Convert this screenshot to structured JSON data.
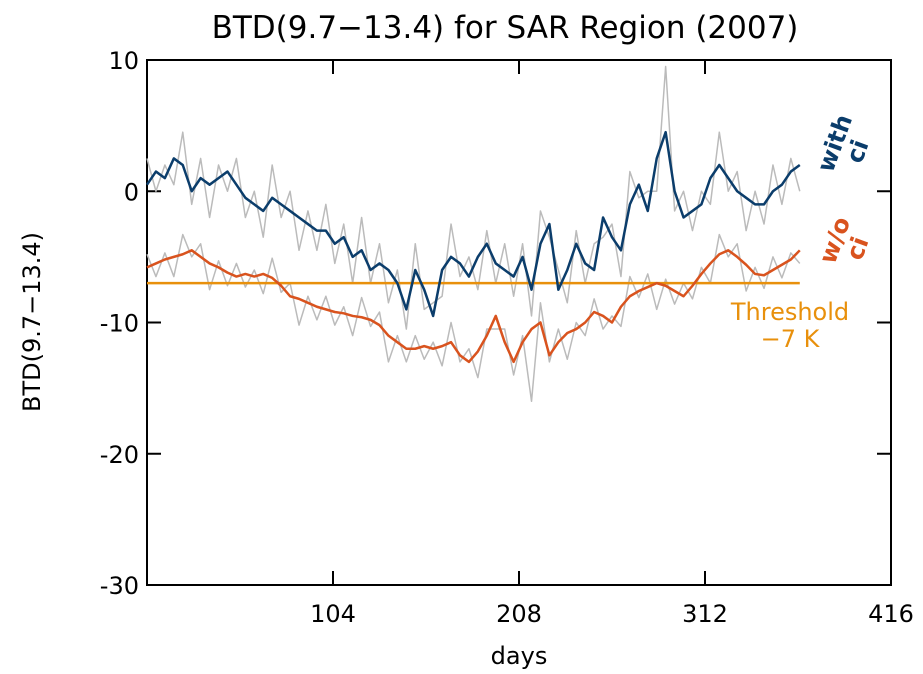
{
  "chart_data": {
    "type": "line",
    "title": "BTD(9.7−13.4) for SAR Region (2007)",
    "x_label": "days",
    "y_label": "BTD(9.7−13.4)",
    "xlim": [
      0,
      416
    ],
    "xticks": [
      104,
      208,
      312,
      416
    ],
    "ylim": [
      -30,
      10
    ],
    "yticks": [
      -30,
      -20,
      -10,
      0,
      10
    ],
    "x": [
      0,
      5,
      10,
      15,
      20,
      25,
      30,
      35,
      40,
      45,
      50,
      55,
      60,
      65,
      70,
      75,
      80,
      85,
      90,
      95,
      100,
      105,
      110,
      115,
      120,
      125,
      130,
      135,
      140,
      145,
      150,
      155,
      160,
      165,
      170,
      175,
      180,
      185,
      190,
      195,
      200,
      205,
      210,
      215,
      220,
      225,
      230,
      235,
      240,
      245,
      250,
      255,
      260,
      265,
      270,
      275,
      280,
      285,
      290,
      295,
      300,
      305,
      310,
      315,
      320,
      325,
      330,
      335,
      340,
      345,
      350,
      355,
      360,
      365
    ],
    "series": [
      {
        "color": "#bbbbbb",
        "values": [
          2.5,
          0,
          2,
          0.5,
          4.5,
          -1,
          2.5,
          -2,
          2,
          0,
          2.5,
          -2,
          0,
          -3.5,
          2,
          -2,
          0,
          -4.5,
          -1.5,
          -4.5,
          -1,
          -5.5,
          -2.5,
          -7,
          -2,
          -7,
          -4,
          -8.5,
          -6,
          -10.5,
          -4,
          -9,
          -8.5,
          -8,
          -2.5,
          -6.5,
          -5,
          -7.5,
          -3,
          -7,
          -4,
          -8,
          -4,
          -9.5,
          -1.5,
          -3.5,
          -6,
          -8.5,
          -3,
          -7,
          -4,
          -3.5,
          -2.5,
          -6.5,
          1.5,
          -0.5,
          0,
          0,
          9.5,
          -1.5,
          0,
          -3,
          0,
          -1,
          4.5,
          0,
          1.5,
          -3,
          0,
          -2.5,
          2,
          -1,
          2.5,
          0
        ]
      },
      {
        "color": "#bbbbbb",
        "values": [
          -4.8,
          -6.5,
          -4.7,
          -6.5,
          -3.3,
          -5,
          -4,
          -7.5,
          -5.3,
          -7.2,
          -5.5,
          -7.3,
          -6,
          -7.8,
          -5.1,
          -7.7,
          -7,
          -10.2,
          -8,
          -9.8,
          -8,
          -10.2,
          -8.8,
          -11,
          -8.1,
          -10.3,
          -9.2,
          -13,
          -11,
          -13,
          -11,
          -12.8,
          -11.5,
          -13.3,
          -10,
          -13,
          -12,
          -14.2,
          -10.5,
          -10.5,
          -10.5,
          -14,
          -11,
          -16,
          -8.5,
          -13,
          -10.5,
          -12.8,
          -10,
          -11,
          -8.2,
          -10.5,
          -9.5,
          -10.3,
          -6.5,
          -8.1,
          -6.3,
          -9,
          -6.7,
          -8.6,
          -7,
          -8.2,
          -5.8,
          -7,
          -3.3,
          -5,
          -4,
          -7.6,
          -5.8,
          -7.4,
          -5,
          -6.6,
          -4.7,
          -5.5
        ]
      },
      {
        "name": "with ci",
        "color": "#0b3d6b",
        "values": [
          0.5,
          1.5,
          1,
          2.5,
          2,
          0,
          1,
          0.5,
          1,
          1.5,
          0.5,
          -0.5,
          -1,
          -1.5,
          -0.5,
          -1,
          -1.5,
          -2,
          -2.5,
          -3,
          -3,
          -4,
          -3.5,
          -5,
          -4.5,
          -6,
          -5.5,
          -6,
          -7,
          -9,
          -6,
          -7.5,
          -9.5,
          -6,
          -5,
          -5.5,
          -6.5,
          -5,
          -4,
          -5.5,
          -6,
          -6.5,
          -5,
          -7.5,
          -4,
          -2.5,
          -7.5,
          -6,
          -4,
          -5.5,
          -6,
          -2,
          -3.5,
          -4.5,
          -1,
          0.5,
          -1.5,
          2.5,
          4.5,
          0,
          -2,
          -1.5,
          -1,
          1,
          2,
          1,
          0,
          -0.5,
          -1,
          -1,
          0,
          0.5,
          1.5,
          2
        ]
      },
      {
        "name": "w/o ci",
        "color": "#d9531e",
        "values": [
          -5.8,
          -5.5,
          -5.2,
          -5,
          -4.8,
          -4.5,
          -5,
          -5.5,
          -5.8,
          -6.2,
          -6.5,
          -6.3,
          -6.5,
          -6.3,
          -6.6,
          -7.2,
          -8,
          -8.2,
          -8.5,
          -8.8,
          -9,
          -9.2,
          -9.3,
          -9.5,
          -9.6,
          -9.8,
          -10.2,
          -11,
          -11.5,
          -12,
          -12,
          -11.8,
          -12,
          -11.8,
          -11.5,
          -12.5,
          -13,
          -12.2,
          -11,
          -9.5,
          -11.5,
          -13,
          -11.5,
          -10.5,
          -10,
          -12.5,
          -11.5,
          -10.8,
          -10.5,
          -10,
          -9.2,
          -9.5,
          -10,
          -8.8,
          -8,
          -7.6,
          -7.3,
          -7,
          -7.2,
          -7.6,
          -8,
          -7.2,
          -6.3,
          -5.5,
          -4.8,
          -4.5,
          -5,
          -5.6,
          -6.3,
          -6.4,
          -6,
          -5.6,
          -5.2,
          -4.5
        ]
      }
    ],
    "threshold": {
      "value": -7,
      "label": [
        "Threshold",
        "−7 K"
      ],
      "color": "#e8900c"
    }
  }
}
